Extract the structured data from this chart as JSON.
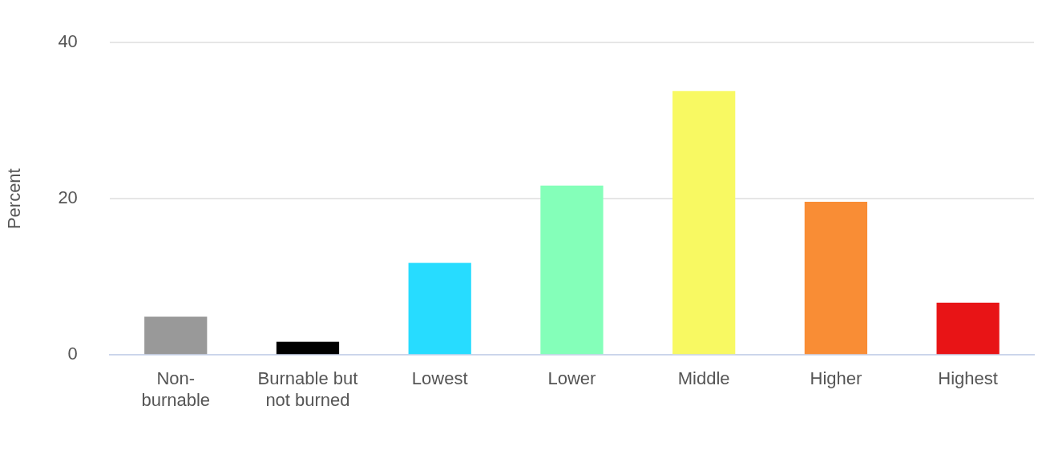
{
  "chart_data": {
    "type": "bar",
    "ylabel": "Percent",
    "categories": [
      "Non-burnable",
      "Burnable but not burned",
      "Lowest",
      "Lower",
      "Middle",
      "Higher",
      "Highest"
    ],
    "values": [
      4.9,
      1.7,
      11.8,
      21.7,
      33.8,
      19.6,
      6.7
    ],
    "colors": [
      "#999999",
      "#000000",
      "#27dcff",
      "#84ffb9",
      "#f8f962",
      "#f98d35",
      "#e81416"
    ],
    "ylim": [
      0,
      40
    ],
    "yticks": [
      0,
      20,
      40
    ],
    "grid": "y"
  }
}
